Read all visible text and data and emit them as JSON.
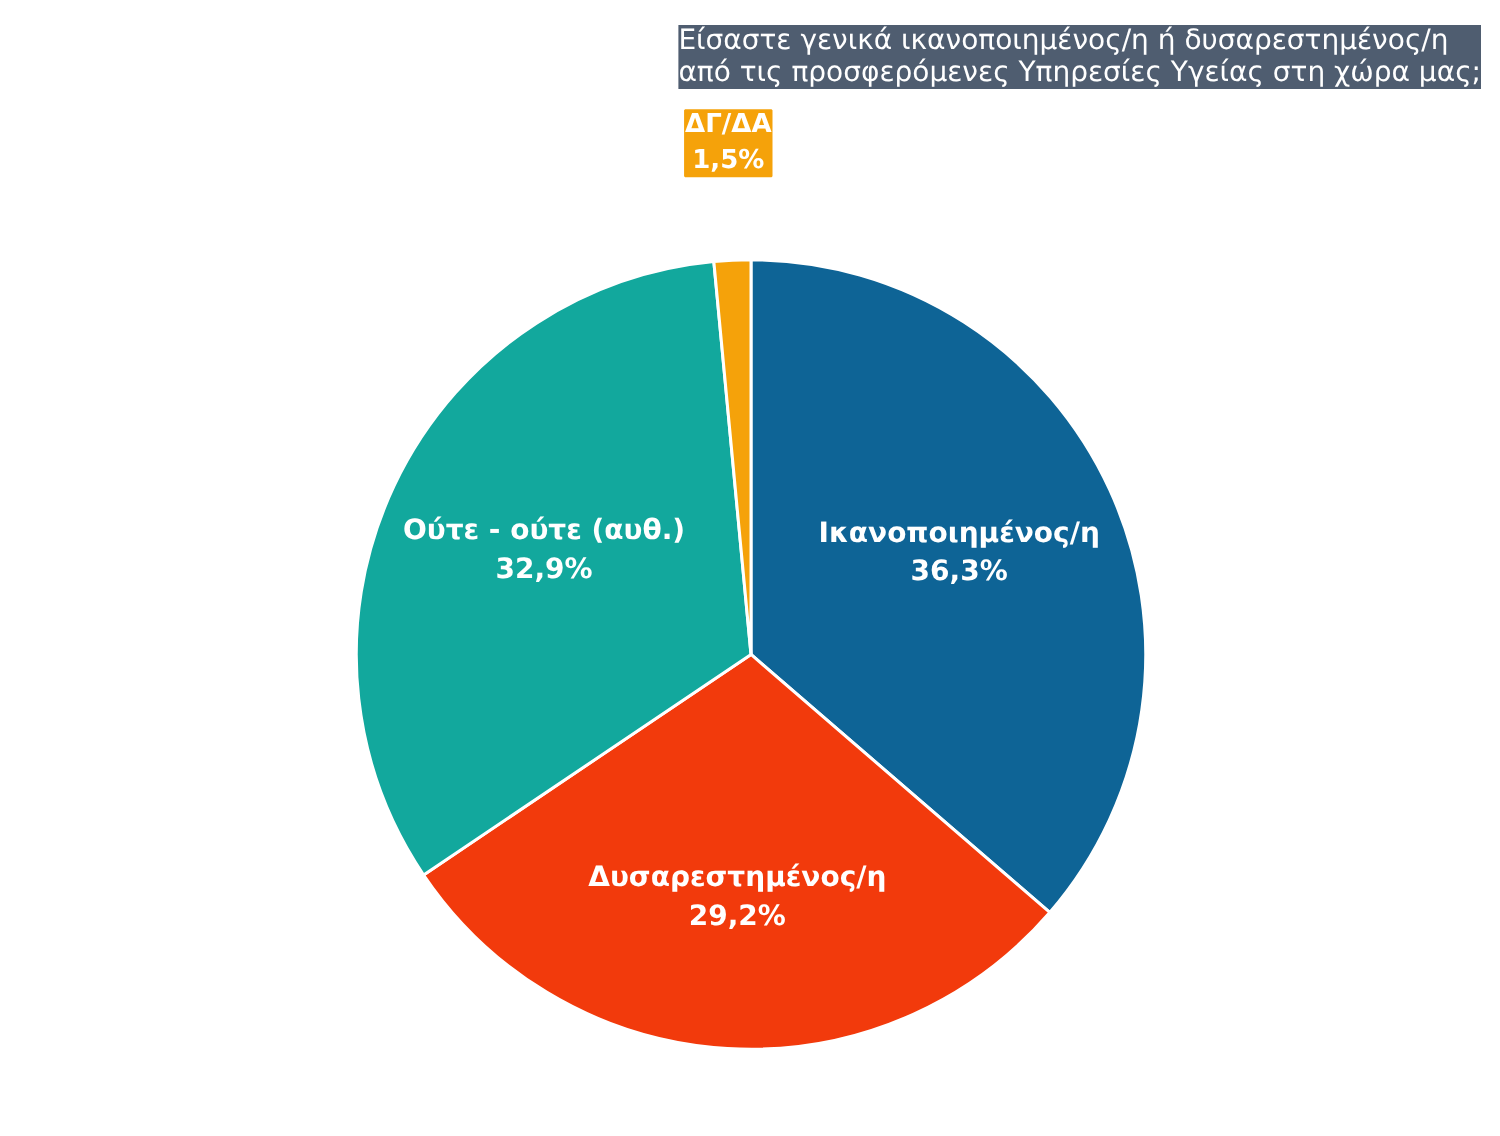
{
  "chart_data": {
    "type": "pie",
    "title": "Είσαστε γενικά ικανοποιημένος/η ή δυσαρεστημένος/η\nαπό τις προσφερόμενες Υπηρεσίες Υγείας στη χώρα μας;",
    "categories": [
      "Ικανοποιημένος/η",
      "Δυσαρεστημένος/η",
      "Ούτε - ούτε (αυθ.)",
      "ΔΓ/ΔΑ"
    ],
    "values": [
      36.3,
      29.2,
      32.9,
      1.5
    ],
    "colors": [
      "#0e6496",
      "#f23a0c",
      "#12a89d",
      "#f5a20a"
    ],
    "value_labels": [
      "36,3%",
      "29,2%",
      "32,9%",
      "1,5%"
    ]
  }
}
